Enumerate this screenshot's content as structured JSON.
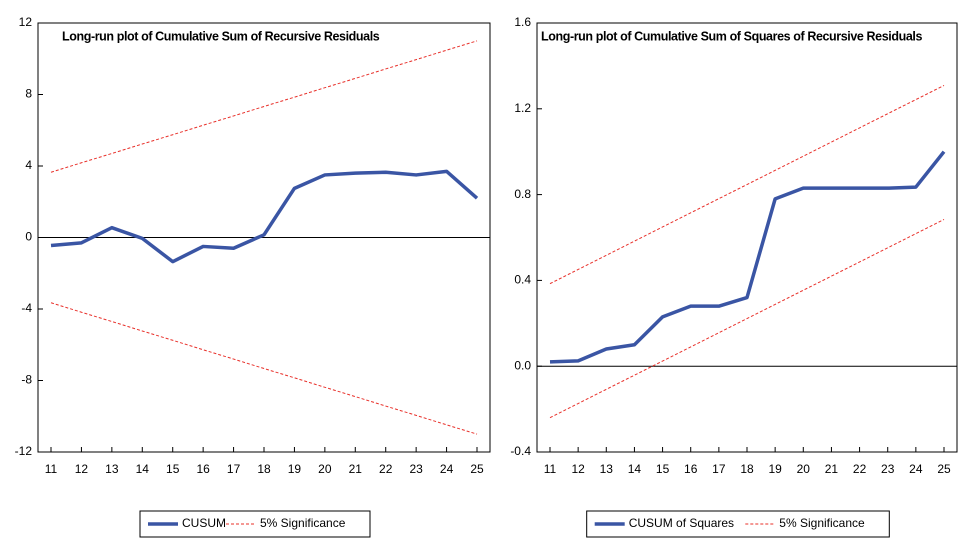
{
  "chart_data": [
    {
      "type": "line",
      "title": "Long-run plot of Cumulative Sum of Recursive Residuals",
      "categories": [
        "11",
        "12",
        "13",
        "14",
        "15",
        "16",
        "17",
        "18",
        "19",
        "20",
        "21",
        "22",
        "23",
        "24",
        "25"
      ],
      "series": [
        {
          "name": "CUSUM",
          "color": "#3a55a4",
          "values": [
            -0.45,
            -0.3,
            0.55,
            -0.05,
            -1.35,
            -0.5,
            -0.6,
            0.15,
            2.75,
            3.5,
            3.6,
            3.65,
            3.5,
            3.7,
            2.2
          ]
        },
        {
          "name": "5% Significance",
          "color": "#e8302a",
          "dashed": true,
          "values": [
            3.65,
            4.18,
            4.7,
            5.23,
            5.75,
            6.28,
            6.8,
            7.33,
            7.85,
            8.38,
            8.9,
            9.43,
            9.95,
            10.48,
            11.0
          ],
          "lower": [
            -3.65,
            -4.18,
            -4.7,
            -5.23,
            -5.75,
            -6.28,
            -6.8,
            -7.33,
            -7.85,
            -8.38,
            -8.9,
            -9.43,
            -9.95,
            -10.48,
            -11.0
          ]
        }
      ],
      "ylim": [
        -12,
        12
      ],
      "yticks": [
        -12,
        -8,
        -4,
        0,
        4,
        8,
        12
      ],
      "zero_line": true
    },
    {
      "type": "line",
      "title": "Long-run plot of Cumulative Sum of Squares of Recursive Residuals",
      "categories": [
        "11",
        "12",
        "13",
        "14",
        "15",
        "16",
        "17",
        "18",
        "19",
        "20",
        "21",
        "22",
        "23",
        "24",
        "25"
      ],
      "series": [
        {
          "name": "CUSUM of Squares",
          "color": "#3a55a4",
          "values": [
            0.02,
            0.025,
            0.08,
            0.1,
            0.23,
            0.28,
            0.28,
            0.32,
            0.78,
            0.83,
            0.83,
            0.83,
            0.83,
            0.835,
            1.0
          ]
        },
        {
          "name": "5% Significance",
          "color": "#e8302a",
          "dashed": true,
          "values": [
            0.385,
            0.451,
            0.517,
            0.583,
            0.649,
            0.715,
            0.781,
            0.847,
            0.913,
            0.979,
            1.045,
            1.111,
            1.177,
            1.243,
            1.309
          ],
          "lower": [
            -0.24,
            -0.174,
            -0.108,
            -0.042,
            0.024,
            0.09,
            0.156,
            0.222,
            0.288,
            0.354,
            0.42,
            0.486,
            0.552,
            0.618,
            0.684
          ]
        }
      ],
      "ylim": [
        -0.4,
        1.6
      ],
      "yticks": [
        -0.4,
        {
          "value": 0,
          "label": "0.0"
        },
        0.4,
        0.8,
        1.2,
        1.6
      ],
      "zero_line": true
    }
  ]
}
